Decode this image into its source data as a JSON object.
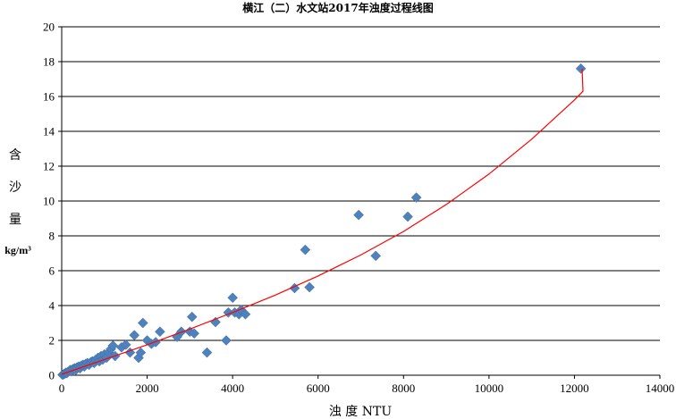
{
  "chart_data": {
    "type": "scatter",
    "title": "横江（二）水文站2017年浊度过程线图",
    "xlabel": "浊  度  NTU",
    "ylabel_chars": [
      "含",
      "沙",
      "量"
    ],
    "ylabel_unit": "kg/m³",
    "xlim": [
      0,
      14000
    ],
    "ylim": [
      0,
      20
    ],
    "x_ticks": [
      "0",
      "2000",
      "4000",
      "6000",
      "8000",
      "10000",
      "12000",
      "14000"
    ],
    "y_ticks": [
      "0",
      "2",
      "4",
      "6",
      "8",
      "10",
      "12",
      "14",
      "16",
      "18",
      "20"
    ],
    "grid": "horizontal",
    "marker_color": "#4F81BD",
    "trend_color": "#FF0000",
    "trend_points": [
      [
        0,
        0.05
      ],
      [
        1000,
        0.9
      ],
      [
        2000,
        1.75
      ],
      [
        3000,
        2.65
      ],
      [
        4000,
        3.6
      ],
      [
        5000,
        4.6
      ],
      [
        6000,
        5.7
      ],
      [
        7000,
        6.9
      ],
      [
        8000,
        8.25
      ],
      [
        9000,
        9.8
      ],
      [
        10000,
        11.55
      ],
      [
        11000,
        13.55
      ],
      [
        12000,
        15.8
      ],
      [
        12200,
        16.3
      ],
      [
        12180,
        17.6
      ]
    ],
    "points": [
      [
        20,
        0.02
      ],
      [
        40,
        0.05
      ],
      [
        60,
        0.08
      ],
      [
        80,
        0.1
      ],
      [
        100,
        0.15
      ],
      [
        120,
        0.12
      ],
      [
        150,
        0.2
      ],
      [
        180,
        0.25
      ],
      [
        200,
        0.3
      ],
      [
        230,
        0.22
      ],
      [
        260,
        0.35
      ],
      [
        300,
        0.4
      ],
      [
        330,
        0.3
      ],
      [
        360,
        0.45
      ],
      [
        400,
        0.5
      ],
      [
        430,
        0.4
      ],
      [
        460,
        0.55
      ],
      [
        500,
        0.6
      ],
      [
        530,
        0.5
      ],
      [
        560,
        0.65
      ],
      [
        600,
        0.7
      ],
      [
        640,
        0.6
      ],
      [
        680,
        0.75
      ],
      [
        720,
        0.8
      ],
      [
        760,
        0.7
      ],
      [
        800,
        0.9
      ],
      [
        850,
        1.0
      ],
      [
        880,
        0.8
      ],
      [
        920,
        1.1
      ],
      [
        960,
        0.9
      ],
      [
        1000,
        1.2
      ],
      [
        1050,
        1.0
      ],
      [
        1100,
        1.3
      ],
      [
        1150,
        1.5
      ],
      [
        1200,
        1.7
      ],
      [
        1250,
        1.1
      ],
      [
        1400,
        1.6
      ],
      [
        1500,
        1.75
      ],
      [
        1600,
        1.3
      ],
      [
        1700,
        2.3
      ],
      [
        1800,
        1.0
      ],
      [
        1850,
        1.3
      ],
      [
        1900,
        3.0
      ],
      [
        2000,
        2.0
      ],
      [
        2100,
        1.8
      ],
      [
        2200,
        1.9
      ],
      [
        2300,
        2.5
      ],
      [
        2700,
        2.2
      ],
      [
        2800,
        2.5
      ],
      [
        3000,
        2.5
      ],
      [
        3050,
        3.35
      ],
      [
        3100,
        2.4
      ],
      [
        3400,
        1.3
      ],
      [
        3600,
        3.05
      ],
      [
        3850,
        2.0
      ],
      [
        3900,
        3.6
      ],
      [
        4000,
        4.45
      ],
      [
        4050,
        3.6
      ],
      [
        4150,
        3.5
      ],
      [
        4200,
        3.75
      ],
      [
        4300,
        3.5
      ],
      [
        5450,
        5.0
      ],
      [
        5700,
        7.2
      ],
      [
        5800,
        5.05
      ],
      [
        6950,
        9.2
      ],
      [
        7350,
        6.85
      ],
      [
        8100,
        9.1
      ],
      [
        8300,
        10.2
      ],
      [
        12150,
        17.6
      ]
    ]
  }
}
